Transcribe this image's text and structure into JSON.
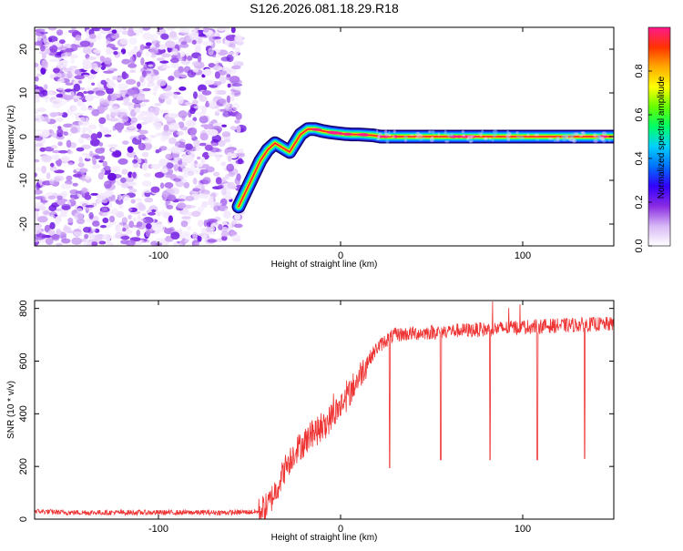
{
  "figure_title": "S126.2026.081.18.29.R18",
  "chart_data": [
    {
      "type": "heatmap",
      "title": "S126.2026.081.18.29.R18",
      "xlabel": "Height of straight line (km)",
      "ylabel": "Frequency (Hz)",
      "xlim": [
        -168,
        150
      ],
      "ylim": [
        -25,
        25
      ],
      "xticks": [
        -100,
        0,
        100
      ],
      "yticks": [
        -20,
        -10,
        0,
        10,
        20
      ],
      "xtick_labels": [
        "-100",
        "0",
        "100"
      ],
      "ytick_labels": [
        "-20",
        "-10",
        "0",
        "10",
        "20"
      ],
      "noise_region_x": [
        -168,
        -55
      ],
      "ridge": {
        "x": [
          -56,
          -52,
          -48,
          -44,
          -40,
          -36,
          -32,
          -28,
          -25,
          -22,
          -18,
          -14,
          -10,
          -6,
          -2,
          2,
          6,
          10,
          14,
          18,
          22,
          40,
          60,
          80,
          100,
          120,
          140,
          150
        ],
        "y": [
          -16,
          -12.5,
          -9,
          -5.5,
          -3,
          -1.5,
          -2.5,
          -3.5,
          -1.5,
          0.5,
          1.7,
          1.7,
          1.3,
          1.0,
          0.8,
          0.6,
          0.5,
          0.5,
          0.4,
          0.3,
          0.0,
          0.0,
          0.0,
          0.0,
          0.0,
          0.0,
          0.0,
          0.0
        ]
      },
      "colorbar": {
        "label": "Normalized spectral amplitude",
        "range": [
          0,
          1
        ],
        "ticks": [
          0.0,
          0.2,
          0.4,
          0.6,
          0.8
        ],
        "tick_labels": [
          "0.0",
          "0.2",
          "0.4",
          "0.6",
          "0.8"
        ],
        "colors": [
          "#ffffff",
          "#d7b8f5",
          "#8a2be2",
          "#3300ff",
          "#0070ff",
          "#00d0ff",
          "#00ff66",
          "#66ff00",
          "#ffff00",
          "#ffaa00",
          "#ff3300",
          "#ff1a8c"
        ]
      }
    },
    {
      "type": "line",
      "xlabel": "Height of straight line (km)",
      "ylabel": "SNR (10 * v/v)",
      "xlim": [
        -168,
        150
      ],
      "ylim": [
        0,
        830
      ],
      "xticks": [
        -100,
        0,
        100
      ],
      "yticks": [
        0,
        200,
        400,
        600,
        800
      ],
      "xtick_labels": [
        "-100",
        "0",
        "100"
      ],
      "ytick_labels": [
        "0",
        "200",
        "400",
        "600",
        "800"
      ],
      "series": [
        {
          "name": "SNR",
          "color": "#ee3333",
          "x": [
            -168,
            -150,
            -120,
            -90,
            -60,
            -45,
            -40,
            -35,
            -30,
            -25,
            -20,
            -15,
            -10,
            -5,
            0,
            5,
            10,
            15,
            20,
            25,
            30,
            40,
            50,
            60,
            80,
            100,
            120,
            140,
            150
          ],
          "y": [
            30,
            25,
            25,
            25,
            25,
            28,
            50,
            120,
            200,
            260,
            290,
            330,
            340,
            390,
            430,
            480,
            540,
            600,
            650,
            680,
            700,
            705,
            710,
            715,
            720,
            730,
            735,
            740,
            740
          ],
          "dips": [
            {
              "x": 27,
              "y": 195
            },
            {
              "x": 55,
              "y": 225
            },
            {
              "x": 82,
              "y": 225
            },
            {
              "x": 108,
              "y": 225
            },
            {
              "x": 134,
              "y": 230
            }
          ]
        }
      ]
    }
  ]
}
